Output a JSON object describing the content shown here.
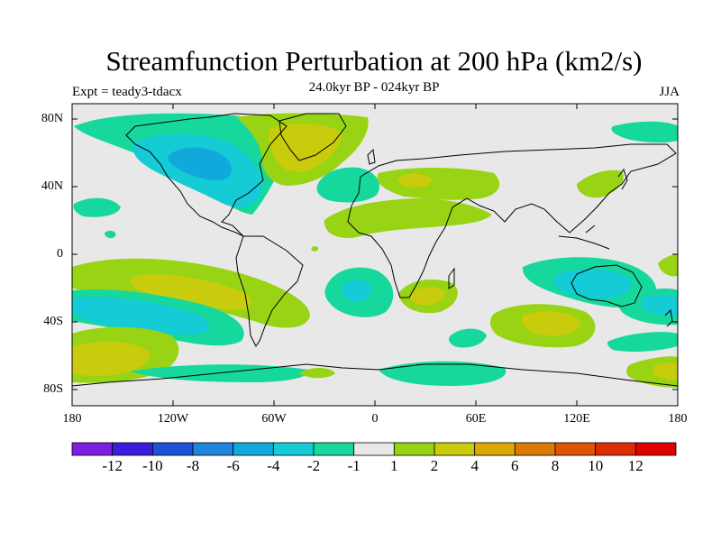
{
  "header": {
    "title": "Streamfunction Perturbation at 200 hPa (km2/s)",
    "subtitle": "24.0kyr BP - 024kyr BP",
    "left_label": "Expt = teady3-tdacx",
    "right_label": "JJA"
  },
  "axes": {
    "lat_labels": [
      "80N",
      "40N",
      "0",
      "40S",
      "80S"
    ],
    "lon_labels": [
      "180",
      "120W",
      "60W",
      "0",
      "60E",
      "120E",
      "180"
    ]
  },
  "colorbar": {
    "labels": [
      "-12",
      "-10",
      "-8",
      "-6",
      "-4",
      "-2",
      "-1",
      "1",
      "2",
      "4",
      "6",
      "8",
      "10",
      "12"
    ],
    "colors": [
      "#7b1fe0",
      "#3a1ee0",
      "#1e52d4",
      "#1f84dc",
      "#11a9dc",
      "#14cbd6",
      "#17d89c",
      "#e8e8e8",
      "#98d414",
      "#c8cc0c",
      "#dca808",
      "#dc7a06",
      "#dc5404",
      "#dc2c04",
      "#e00000"
    ]
  },
  "colors": {
    "background": "#e8e8e8",
    "pos1": "#98d414",
    "pos2": "#c8cc0c",
    "neg1": "#17d89c",
    "neg2": "#14cbd6",
    "neg3": "#11a9dc",
    "coast": "#000000"
  }
}
